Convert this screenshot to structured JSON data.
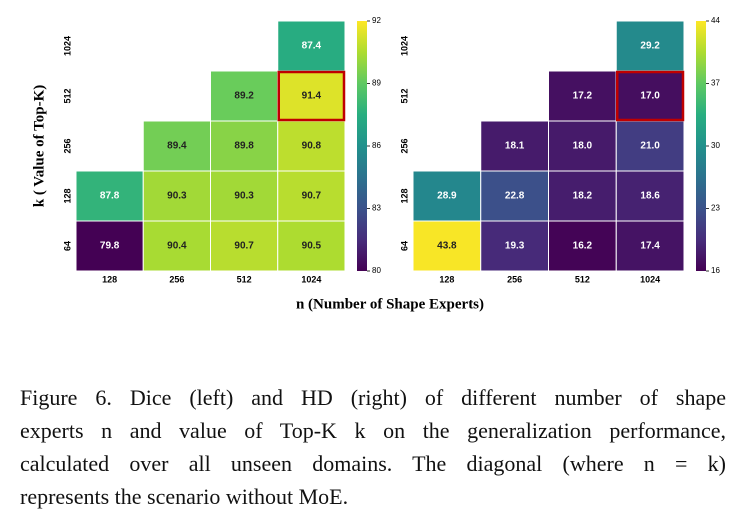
{
  "chart_data": [
    {
      "type": "heatmap",
      "title": null,
      "x_categories": [
        "128",
        "256",
        "512",
        "1024"
      ],
      "y_categories": [
        "64",
        "128",
        "256",
        "512",
        "1024"
      ],
      "values": [
        [
          79.8,
          90.4,
          90.7,
          90.5
        ],
        [
          87.8,
          90.3,
          90.3,
          90.7
        ],
        [
          null,
          89.4,
          89.8,
          90.8
        ],
        [
          null,
          null,
          89.2,
          91.4
        ],
        [
          null,
          null,
          null,
          87.4
        ]
      ],
      "zlim": [
        80,
        92
      ],
      "zticks": [
        80,
        83,
        86,
        89,
        92
      ],
      "colormap": "viridis",
      "highlight": {
        "x": "1024",
        "y": "512"
      }
    },
    {
      "type": "heatmap",
      "title": null,
      "x_categories": [
        "128",
        "256",
        "512",
        "1024"
      ],
      "y_categories": [
        "64",
        "128",
        "256",
        "512",
        "1024"
      ],
      "values": [
        [
          43.8,
          19.3,
          16.2,
          17.4
        ],
        [
          28.9,
          22.8,
          18.2,
          18.6
        ],
        [
          null,
          18.1,
          18.0,
          21.0
        ],
        [
          null,
          null,
          17.2,
          17.0
        ],
        [
          null,
          null,
          null,
          29.2
        ]
      ],
      "value_labels": [
        [
          "43.8",
          "19.3",
          "16.2",
          "17.4"
        ],
        [
          "28.9",
          "22.8",
          "18.2",
          "18.6"
        ],
        [
          null,
          "18.1",
          "18.0",
          "21.0"
        ],
        [
          null,
          null,
          "17.2",
          "17.0"
        ],
        [
          null,
          null,
          null,
          "29.2"
        ]
      ],
      "zlim": [
        16,
        44
      ],
      "zticks": [
        16,
        23,
        30,
        37,
        44
      ],
      "colormap": "viridis",
      "highlight": {
        "x": "1024",
        "y": "512"
      }
    }
  ],
  "figure": {
    "ylabel": "k ( Value of Top-K)",
    "xlabel": "n (Number of Shape Experts)",
    "caption": [
      "Figure 6. Dice (left) and HD (right) of different number of shape",
      "experts n and value of Top-K k on the generalization performance,",
      "calculated over all unseen domains. The diagonal (where n = k)",
      "represents the scenario without MoE."
    ]
  }
}
